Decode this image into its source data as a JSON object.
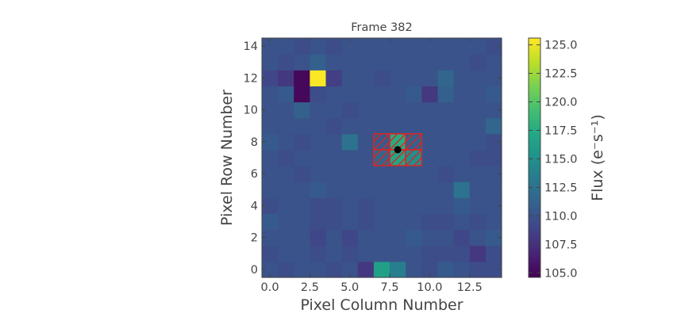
{
  "chart_data": {
    "type": "heatmap",
    "title": "Frame 382",
    "xlabel": "Pixel Column Number",
    "ylabel": "Pixel Row Number",
    "colorbar_label": "Flux (e⁻s⁻¹)",
    "colormap": "viridis",
    "vmin": 104.6,
    "vmax": 125.6,
    "x_tick_labels": [
      "0.0",
      "2.5",
      "5.0",
      "7.5",
      "10.0",
      "12.5"
    ],
    "y_tick_labels": [
      "0",
      "2",
      "4",
      "6",
      "8",
      "10",
      "12",
      "14"
    ],
    "colorbar_tick_labels": [
      "105.0",
      "107.5",
      "110.0",
      "112.5",
      "115.0",
      "117.5",
      "120.0",
      "122.5",
      "125.0"
    ],
    "columns": 15,
    "rows": 15,
    "grid": false,
    "flux_rows_bottom_to_top": [
      [
        110,
        109.5,
        110,
        110,
        109.5,
        110,
        108,
        116.5,
        113.5,
        110,
        109.5,
        110.5,
        110,
        109.5,
        109.5
      ],
      [
        109.5,
        110,
        110,
        109.5,
        110,
        109.5,
        110,
        110,
        110,
        110,
        109.5,
        109.5,
        109.5,
        108,
        109.5
      ],
      [
        110,
        110,
        110,
        109,
        110,
        109,
        110,
        110,
        110,
        110.5,
        110,
        110,
        109,
        110,
        110.5
      ],
      [
        110.5,
        110,
        110,
        109.5,
        109.5,
        110,
        109.5,
        110,
        110,
        110,
        109.5,
        109.5,
        110,
        109.5,
        110
      ],
      [
        109.5,
        110,
        110,
        109.5,
        109.5,
        110,
        109.5,
        110,
        110,
        110,
        110,
        110,
        110.5,
        110,
        110
      ],
      [
        110,
        110,
        110,
        110.5,
        110,
        110,
        110,
        110,
        110,
        110,
        110,
        110,
        112.5,
        110,
        110
      ],
      [
        110,
        110,
        109.5,
        110,
        110,
        110,
        110,
        110,
        110,
        110,
        110,
        109.5,
        110,
        110,
        110
      ],
      [
        110,
        109.5,
        110,
        110,
        110,
        110,
        110,
        111.5,
        117,
        115,
        110,
        110,
        110,
        109.5,
        109.5
      ],
      [
        110.5,
        110,
        109.5,
        110,
        110,
        112.5,
        110,
        110.5,
        117.5,
        111,
        110,
        110,
        110,
        110,
        109.5
      ],
      [
        110,
        110,
        110,
        110,
        109.5,
        110,
        110,
        110,
        110,
        110,
        110,
        110,
        110,
        110,
        111.5
      ],
      [
        110,
        110,
        111,
        110,
        110,
        109.5,
        110,
        110,
        110,
        110,
        110,
        110,
        110,
        110,
        110
      ],
      [
        110,
        110.5,
        105,
        109.5,
        110,
        110,
        110,
        110,
        110,
        110.5,
        108,
        111,
        110,
        110,
        110.5
      ],
      [
        109,
        108,
        105,
        125.5,
        108.5,
        110,
        110,
        109.5,
        110,
        110,
        110,
        111.5,
        110,
        110,
        110
      ],
      [
        110,
        109.5,
        110,
        111,
        110,
        110,
        110,
        110,
        110,
        110,
        110,
        110,
        110,
        109.5,
        110
      ],
      [
        110,
        110,
        109.5,
        110,
        109.5,
        110,
        110,
        110,
        110,
        110,
        110,
        110,
        110,
        110,
        109.5
      ]
    ],
    "aperture_mask_pixels": [
      [
        7,
        7
      ],
      [
        8,
        7
      ],
      [
        9,
        7
      ],
      [
        7,
        8
      ],
      [
        8,
        8
      ],
      [
        9,
        8
      ]
    ],
    "aperture_color": "#d62728",
    "target_marker": {
      "x": 8.0,
      "y": 7.5,
      "color": "#000000"
    }
  }
}
